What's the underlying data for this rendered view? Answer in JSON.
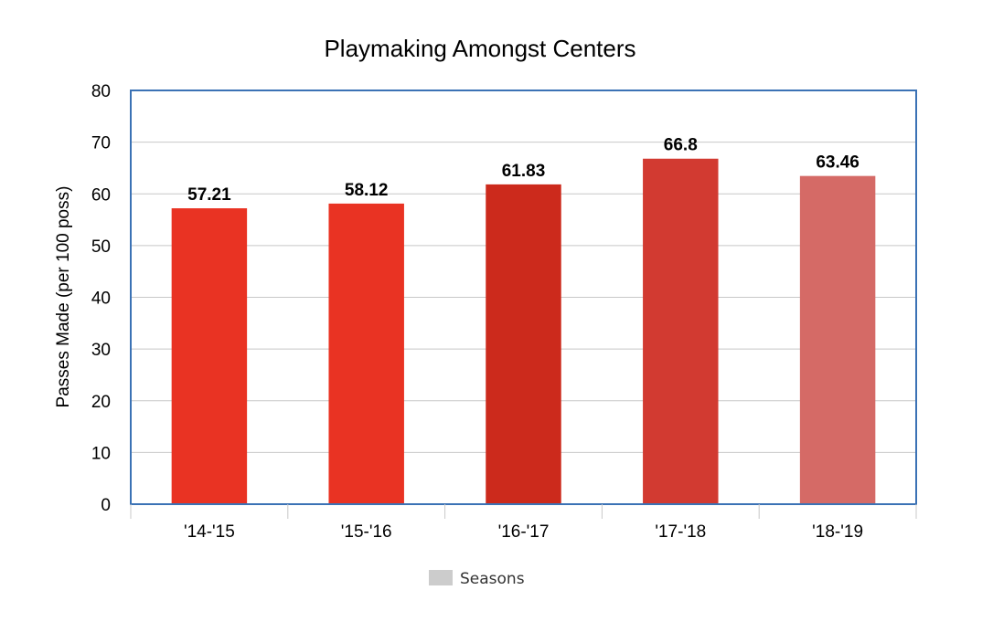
{
  "chart_data": {
    "type": "bar",
    "title": "Playmaking Amongst Centers",
    "xlabel": "",
    "ylabel": "Passes Made (per 100 poss)",
    "ylim": [
      0,
      80
    ],
    "yticks": [
      0,
      10,
      20,
      30,
      40,
      50,
      60,
      70,
      80
    ],
    "grid": true,
    "categories": [
      "'14-'15",
      "'15-'16",
      "'16-'17",
      "'17-'18",
      "'18-'19"
    ],
    "series": [
      {
        "name": "Seasons",
        "values": [
          57.21,
          58.12,
          61.83,
          66.8,
          63.46
        ],
        "data_labels": [
          "57.21",
          "58.12",
          "61.83",
          "66.8",
          "63.46"
        ],
        "colors": [
          "#e93323",
          "#e93323",
          "#cc2a1c",
          "#d23a31",
          "#d56a66"
        ]
      }
    ],
    "legend": {
      "position": "bottom",
      "color": "#cccccc"
    },
    "frame_color": "#3b72b5",
    "grid_color": "#c8c8c8"
  }
}
